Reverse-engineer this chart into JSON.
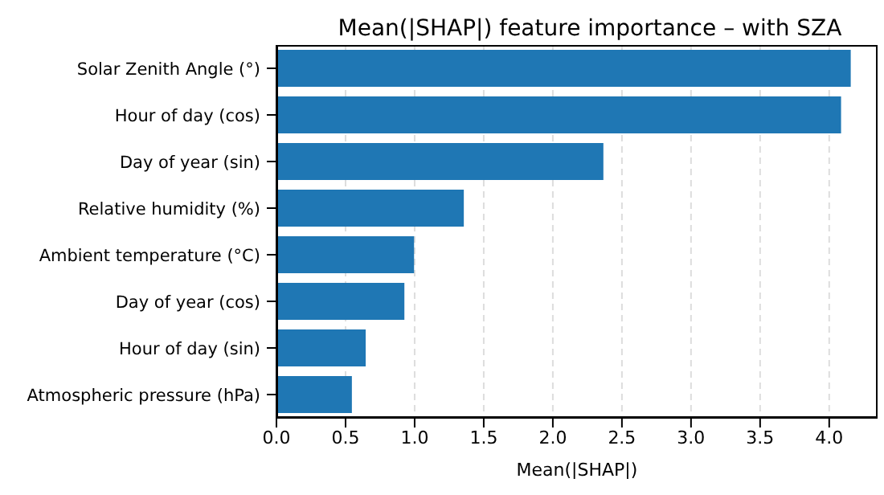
{
  "chart_data": {
    "type": "bar",
    "orientation": "horizontal",
    "title": "Mean(|SHAP|) feature importance – with SZA",
    "xlabel": "Mean(|SHAP|)",
    "categories": [
      "Solar Zenith Angle (°)",
      "Hour of day (cos)",
      "Day of year (sin)",
      "Relative humidity (%)",
      "Ambient temperature (°C)",
      "Day of year (cos)",
      "Hour of day (sin)",
      "Atmospheric pressure (hPa)"
    ],
    "values": [
      4.15,
      4.08,
      2.36,
      1.35,
      0.99,
      0.92,
      0.64,
      0.54
    ],
    "color": "#1f77b4",
    "xlim": [
      0,
      4.35
    ],
    "xticks": [
      {
        "value": 0,
        "label": "0.0"
      },
      {
        "value": 0.5,
        "label": "0.5"
      },
      {
        "value": 1,
        "label": "1.0"
      },
      {
        "value": 1.5,
        "label": "1.5"
      },
      {
        "value": 2,
        "label": "2.0"
      },
      {
        "value": 2.5,
        "label": "2.5"
      },
      {
        "value": 3,
        "label": "3.0"
      },
      {
        "value": 3.5,
        "label": "3.5"
      },
      {
        "value": 4,
        "label": "4.0"
      }
    ],
    "grid": "x"
  }
}
